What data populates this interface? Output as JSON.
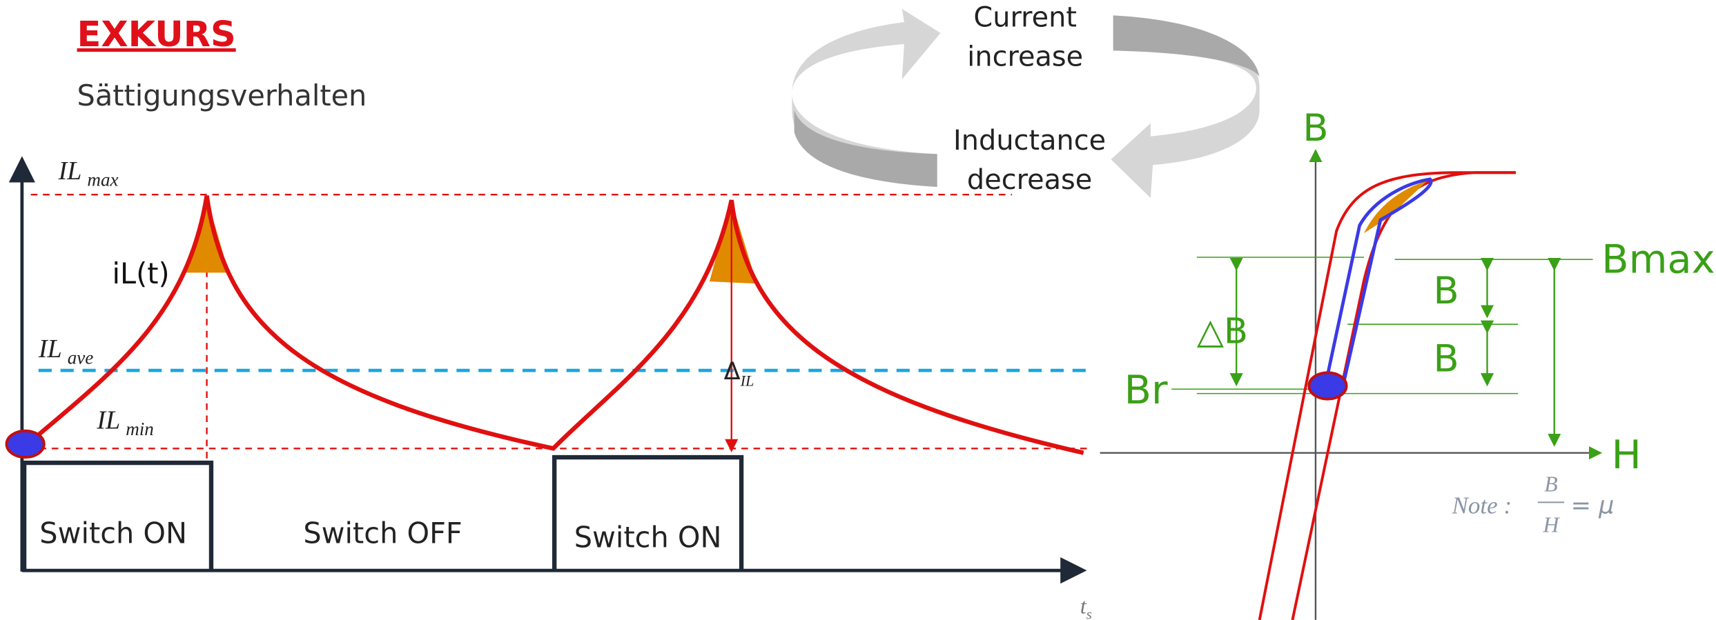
{
  "header": {
    "title": "EXKURS",
    "subtitle": "Sättigungsverhalten"
  },
  "cycle": {
    "top": [
      "Current",
      "increase"
    ],
    "bottom": [
      "Inductance",
      "decrease"
    ]
  },
  "waveform": {
    "il_max": {
      "base": "IL",
      "sub": "max"
    },
    "il_ave": {
      "base": "IL",
      "sub": "ave"
    },
    "il_min": {
      "base": "IL",
      "sub": "min"
    },
    "delta": {
      "base": "Δ",
      "sub": "IL"
    },
    "curve_label": "iL(t)",
    "time": {
      "base": "t",
      "sub": "s"
    },
    "switches": [
      "Switch ON",
      "Switch OFF",
      "Switch ON"
    ]
  },
  "hysteresis": {
    "y_axis": "B",
    "x_axis": "H",
    "bmax": "Bmax",
    "br": "Br",
    "delta_b": "△B",
    "half_b": [
      "B",
      "B"
    ],
    "note": {
      "prefix": "Note :",
      "num": "B",
      "den": "H",
      "result": "= μ"
    }
  }
}
